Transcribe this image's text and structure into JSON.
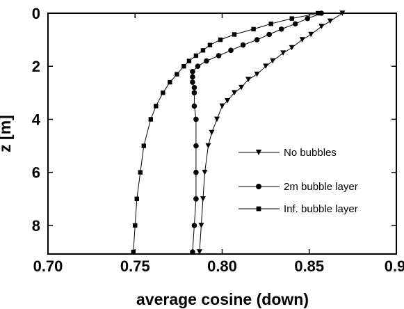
{
  "chart_data": {
    "type": "line",
    "xlabel": "average cosine (down)",
    "ylabel": "z [m]",
    "xlim": [
      0.7,
      0.9
    ],
    "ylim": [
      0,
      9
    ],
    "y_inverted": true,
    "grid": false,
    "legend_position": "middle-right",
    "x_ticks": [
      "0.70",
      "0.75",
      "0.80",
      "0.85",
      "0.9"
    ],
    "x_tick_values": [
      0.7,
      0.75,
      0.8,
      0.85,
      0.9
    ],
    "y_ticks": [
      "0",
      "2",
      "4",
      "6",
      "8"
    ],
    "y_tick_values": [
      0,
      2,
      4,
      6,
      8
    ],
    "series": [
      {
        "name": "No bubbles",
        "marker": "triangle-down",
        "points": [
          [
            0.869,
            0.0
          ],
          [
            0.862,
            0.3
          ],
          [
            0.857,
            0.5
          ],
          [
            0.851,
            0.8
          ],
          [
            0.846,
            1.0
          ],
          [
            0.84,
            1.3
          ],
          [
            0.835,
            1.5
          ],
          [
            0.829,
            1.8
          ],
          [
            0.825,
            2.0
          ],
          [
            0.82,
            2.3
          ],
          [
            0.815,
            2.5
          ],
          [
            0.811,
            2.8
          ],
          [
            0.807,
            3.0
          ],
          [
            0.803,
            3.3
          ],
          [
            0.8,
            3.5
          ],
          [
            0.797,
            4.0
          ],
          [
            0.794,
            4.5
          ],
          [
            0.792,
            5.0
          ],
          [
            0.79,
            6.0
          ],
          [
            0.789,
            7.0
          ],
          [
            0.788,
            8.0
          ],
          [
            0.787,
            9.0
          ]
        ]
      },
      {
        "name": "2m bubble layer",
        "marker": "circle",
        "points": [
          [
            0.857,
            0.0
          ],
          [
            0.849,
            0.2
          ],
          [
            0.842,
            0.4
          ],
          [
            0.834,
            0.6
          ],
          [
            0.827,
            0.8
          ],
          [
            0.82,
            1.0
          ],
          [
            0.812,
            1.2
          ],
          [
            0.805,
            1.4
          ],
          [
            0.798,
            1.6
          ],
          [
            0.791,
            1.8
          ],
          [
            0.786,
            2.0
          ],
          [
            0.783,
            2.2
          ],
          [
            0.783,
            2.4
          ],
          [
            0.783,
            2.6
          ],
          [
            0.784,
            2.8
          ],
          [
            0.784,
            3.0
          ],
          [
            0.784,
            3.5
          ],
          [
            0.785,
            4.0
          ],
          [
            0.785,
            5.0
          ],
          [
            0.785,
            6.0
          ],
          [
            0.785,
            7.0
          ],
          [
            0.784,
            8.0
          ],
          [
            0.783,
            9.0
          ]
        ]
      },
      {
        "name": "Inf. bubble layer",
        "marker": "square",
        "points": [
          [
            0.855,
            0.0
          ],
          [
            0.84,
            0.2
          ],
          [
            0.828,
            0.4
          ],
          [
            0.818,
            0.6
          ],
          [
            0.807,
            0.8
          ],
          [
            0.799,
            1.0
          ],
          [
            0.793,
            1.2
          ],
          [
            0.789,
            1.4
          ],
          [
            0.785,
            1.6
          ],
          [
            0.781,
            1.8
          ],
          [
            0.778,
            2.0
          ],
          [
            0.774,
            2.3
          ],
          [
            0.77,
            2.6
          ],
          [
            0.766,
            3.0
          ],
          [
            0.762,
            3.5
          ],
          [
            0.759,
            4.0
          ],
          [
            0.755,
            5.0
          ],
          [
            0.753,
            6.0
          ],
          [
            0.751,
            7.0
          ],
          [
            0.75,
            8.0
          ],
          [
            0.749,
            9.0
          ]
        ]
      }
    ]
  }
}
